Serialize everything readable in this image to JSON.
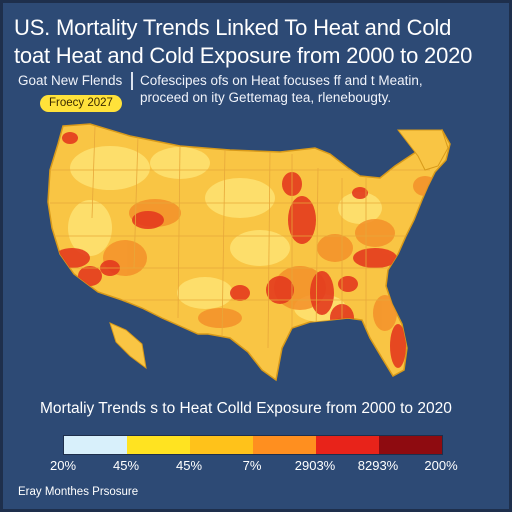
{
  "title": {
    "line1": "US. Mortality Trends Linked To Heat and Cold",
    "line2": "toat Heat and Cold Exposure from 2000 to 2020"
  },
  "subheader": {
    "left": "Goat New Flends",
    "right_line1": "Cofescipes ofs on Heat focuses ff and t Meatin,",
    "right_line2": "proceed on ity Gettemag tea, rlenebougty."
  },
  "badge": "Froecy 2027",
  "chart_title": "Mortaliy Trends s to Heat Colld Exposure from 2000 to 2020",
  "legend": {
    "colors": [
      "#d8f0fb",
      "#ffe321",
      "#ffc21a",
      "#ff8f1f",
      "#e8231a",
      "#8e0b10"
    ],
    "labels": [
      "20%",
      "45%",
      "45%",
      "7%",
      "2903%",
      "8293%",
      "200%"
    ]
  },
  "footer": "Eray Monthes Prsosure",
  "map": {
    "base_color": "#f9c544",
    "region_colors": {
      "light": "#fde070",
      "orange": "#f4902a",
      "red": "#e43a1e"
    }
  }
}
